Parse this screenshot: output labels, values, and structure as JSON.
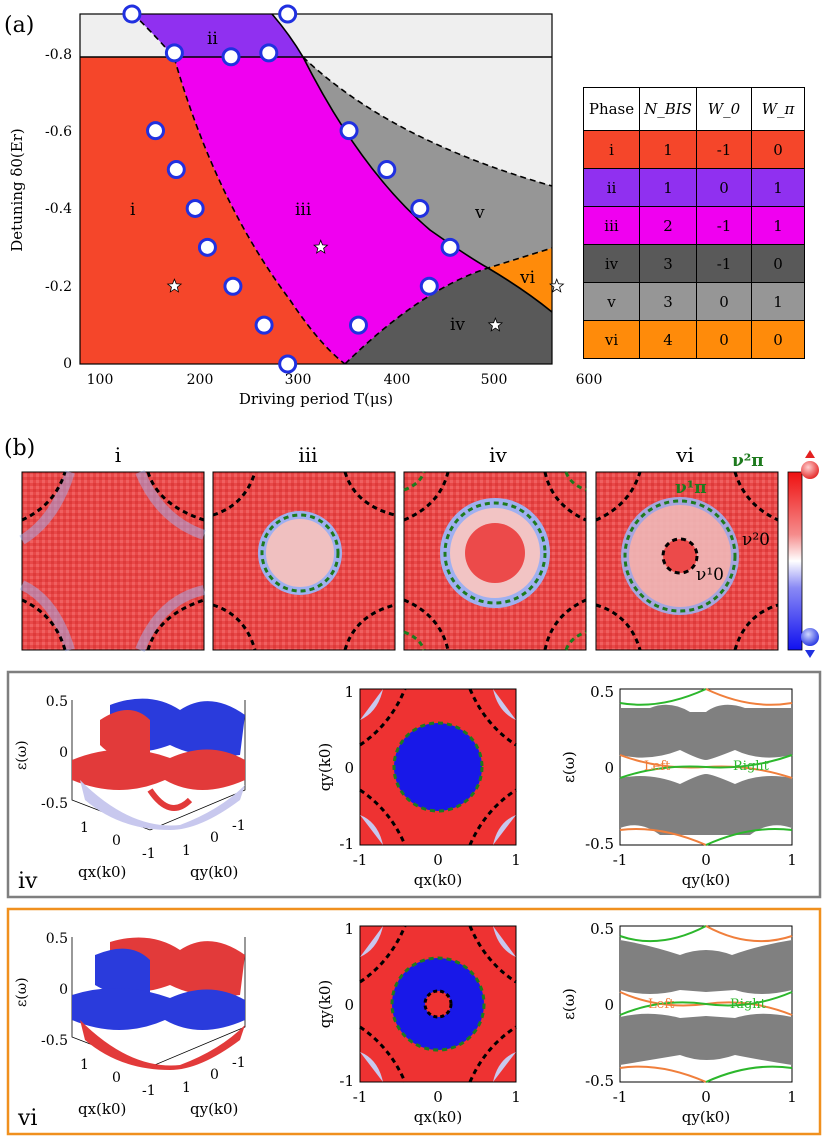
{
  "panel_a": {
    "label": "(a)",
    "x_axis_label": "Driving period T(μs)",
    "y_axis_label": "Detuning δ0(Er)",
    "x_ticks": [
      "100",
      "200",
      "300",
      "400",
      "500",
      "600"
    ],
    "y_ticks": [
      "0",
      "-0.2",
      "-0.4",
      "-0.6",
      "-0.8"
    ],
    "phase_labels": [
      "i",
      "ii",
      "iii",
      "iv",
      "v",
      "vi"
    ],
    "colors": {
      "i": "#f5462a",
      "ii": "#9030f0",
      "iii": "#f000f0",
      "iv": "#595959",
      "v": "#969696",
      "vi": "#ff8b0a",
      "bg": "#efefef"
    }
  },
  "table": {
    "headers": [
      "Phase",
      "N_BIS",
      "W_0",
      "W_π"
    ],
    "rows": [
      {
        "phase": "i",
        "n_bis": "1",
        "w0": "-1",
        "wpi": "0",
        "color": "#f5462a"
      },
      {
        "phase": "ii",
        "n_bis": "1",
        "w0": "0",
        "wpi": "1",
        "color": "#9030f0"
      },
      {
        "phase": "iii",
        "n_bis": "2",
        "w0": "-1",
        "wpi": "1",
        "color": "#f000f0"
      },
      {
        "phase": "iv",
        "n_bis": "3",
        "w0": "-1",
        "wpi": "0",
        "color": "#595959"
      },
      {
        "phase": "v",
        "n_bis": "3",
        "w0": "0",
        "wpi": "1",
        "color": "#969696"
      },
      {
        "phase": "vi",
        "n_bis": "4",
        "w0": "0",
        "wpi": "0",
        "color": "#ff8b0a"
      }
    ]
  },
  "panel_b": {
    "label": "(b)",
    "titles": [
      "i",
      "iii",
      "iv",
      "vi"
    ],
    "annotations": {
      "nu_pi_2": "ν²π",
      "nu_pi_1": "ν¹π",
      "nu_0_1": "ν¹0",
      "nu_0_2": "ν²0"
    }
  },
  "band_panels": [
    {
      "phase": "iv",
      "frame_color": "#7f7f7f",
      "surface_ylabel": "ε(ω)",
      "surface_z_ticks": [
        "0.5",
        "0",
        "-0.5"
      ],
      "surface_qx_label": "qx(k0)",
      "surface_qy_label": "qy(k0)",
      "surface_qx_ticks": [
        "1",
        "0",
        "-1"
      ],
      "surface_qy_ticks": [
        "1",
        "0",
        "-1"
      ],
      "map_xlabel": "qx(k0)",
      "map_ylabel": "qy(k0)",
      "map_ticks": [
        "-1",
        "0",
        "1"
      ],
      "spectrum_ylabel": "ε(ω)",
      "spectrum_xlabel": "qy(k0)",
      "spectrum_y_ticks": [
        "0.5",
        "0",
        "-0.5"
      ],
      "spectrum_x_ticks": [
        "-1",
        "0",
        "1"
      ],
      "left_label": "Left",
      "right_label": "Right"
    },
    {
      "phase": "vi",
      "frame_color": "#f0901e",
      "surface_ylabel": "ε(ω)",
      "surface_z_ticks": [
        "0.5",
        "0",
        "-0.5"
      ],
      "surface_qx_label": "qx(k0)",
      "surface_qy_label": "qy(k0)",
      "surface_qx_ticks": [
        "1",
        "0",
        "-1"
      ],
      "surface_qy_ticks": [
        "1",
        "0",
        "-1"
      ],
      "map_xlabel": "qx(k0)",
      "map_ylabel": "qy(k0)",
      "map_ticks": [
        "-1",
        "0",
        "1"
      ],
      "spectrum_ylabel": "ε(ω)",
      "spectrum_xlabel": "qy(k0)",
      "spectrum_y_ticks": [
        "0.5",
        "0",
        "-0.5"
      ],
      "spectrum_x_ticks": [
        "-1",
        "0",
        "1"
      ],
      "left_label": "Left",
      "right_label": "Right"
    }
  ],
  "chart_data": {
    "type": "scatter",
    "x_label": "Driving period T(μs)",
    "y_label": "Detuning δ0(Er)",
    "xlim": [
      100,
      600
    ],
    "ylim": [
      0,
      -0.9
    ],
    "series": [
      {
        "name": "",
        "x": [
          155,
          200,
          260,
          300,
          320,
          180,
          202,
          222,
          235,
          262,
          295,
          320,
          385,
          425,
          460,
          492,
          470,
          395
        ],
        "y": [
          -0.9,
          -0.8,
          -0.79,
          -0.8,
          -0.9,
          -0.6,
          -0.5,
          -0.4,
          -0.3,
          -0.2,
          -0.1,
          0.0,
          -0.6,
          -0.5,
          -0.4,
          -0.3,
          -0.2,
          -0.1
        ]
      },
      {
        "name": "",
        "x": [
          200,
          355,
          540,
          605
        ],
        "y": [
          -0.2,
          -0.3,
          -0.1,
          -0.2
        ]
      }
    ]
  }
}
